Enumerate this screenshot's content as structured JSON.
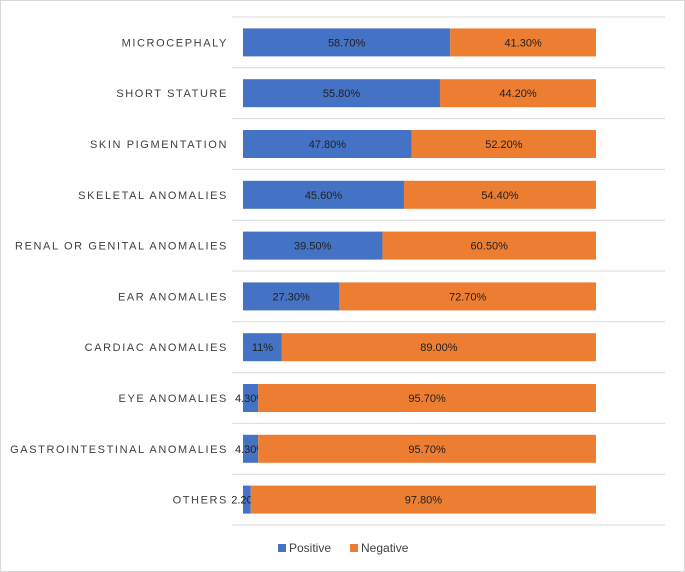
{
  "chart_data": {
    "type": "bar",
    "orientation": "horizontal",
    "stacked": true,
    "title": "",
    "categories": [
      "MICROCEPHALY",
      "SHORT STATURE",
      "SKIN PIGMENTATION",
      "SKELETAL ANOMALIES",
      "RENAL OR GENITAL ANOMALIES",
      "EAR ANOMALIES",
      "CARDIAC ANOMALIES",
      "EYE ANOMALIES",
      "GASTROINTESTINAL ANOMALIES",
      "OTHERS"
    ],
    "series": [
      {
        "name": "Positive",
        "color": "#4472C4",
        "values": [
          58.7,
          55.8,
          47.8,
          45.6,
          39.5,
          27.3,
          11,
          4.3,
          4.3,
          2.2
        ],
        "labels": [
          "58.70%",
          "55.80%",
          "47.80%",
          "45.60%",
          "39.50%",
          "27.30%",
          "11%",
          "4.30%",
          "4.30%",
          "2.20%"
        ]
      },
      {
        "name": "Negative",
        "color": "#ED7D31",
        "values": [
          41.3,
          44.2,
          52.2,
          54.4,
          60.5,
          72.7,
          89.0,
          95.7,
          95.7,
          97.8
        ],
        "labels": [
          "41.30%",
          "44.20%",
          "52.20%",
          "54.40%",
          "60.50%",
          "72.70%",
          "89.00%",
          "95.70%",
          "95.70%",
          "97.80%"
        ]
      }
    ],
    "xlim": [
      0,
      100
    ],
    "grid": true,
    "legend": "bottom-center",
    "xlabel": "",
    "ylabel": ""
  }
}
